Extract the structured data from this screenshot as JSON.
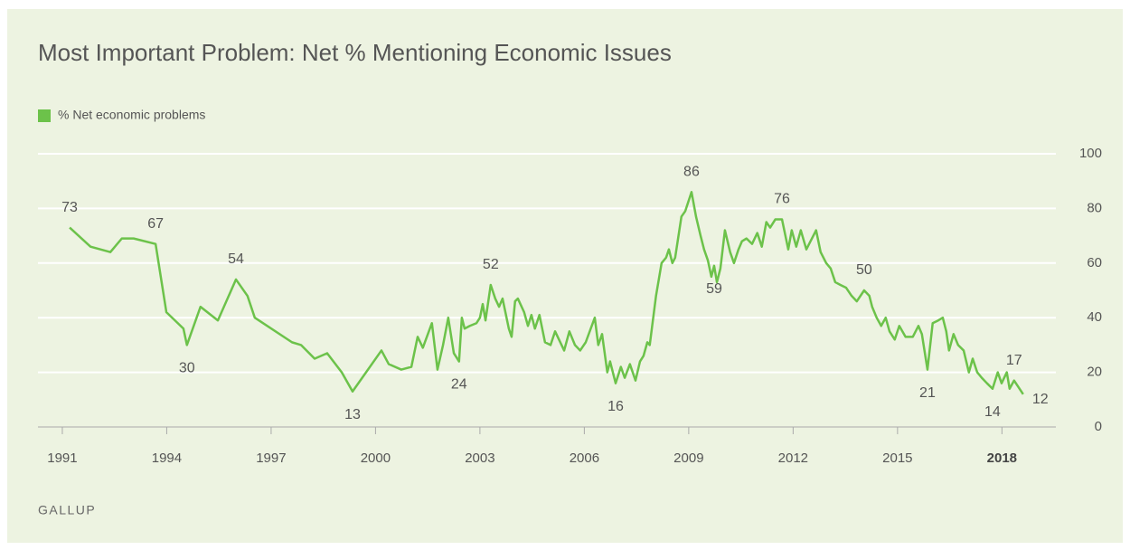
{
  "chart_data": {
    "type": "line",
    "title": "Most Important Problem: Net % Mentioning Economic Issues",
    "source": "GALLUP",
    "x": [
      1991.21,
      1991.81,
      1992.38,
      1992.71,
      1993.05,
      1993.68,
      1993.99,
      1994.48,
      1994.58,
      1994.97,
      1995.47,
      1995.99,
      1996.32,
      1996.53,
      1997.6,
      1997.86,
      1998.25,
      1998.61,
      1999.03,
      1999.34,
      2000.17,
      2000.38,
      2000.74,
      2001.03,
      2001.21,
      2001.36,
      2001.62,
      2001.78,
      2001.94,
      2002.09,
      2002.25,
      2002.4,
      2002.48,
      2002.56,
      2002.71,
      2002.9,
      2003.0,
      2003.08,
      2003.16,
      2003.31,
      2003.44,
      2003.55,
      2003.65,
      2003.83,
      2003.91,
      2004.01,
      2004.09,
      2004.27,
      2004.38,
      2004.48,
      2004.58,
      2004.71,
      2004.87,
      2005.03,
      2005.16,
      2005.42,
      2005.57,
      2005.73,
      2005.88,
      2006.04,
      2006.3,
      2006.4,
      2006.51,
      2006.66,
      2006.74,
      2006.9,
      2007.05,
      2007.16,
      2007.31,
      2007.47,
      2007.6,
      2007.7,
      2007.81,
      2007.88,
      2008.06,
      2008.22,
      2008.35,
      2008.43,
      2008.53,
      2008.61,
      2008.79,
      2008.9,
      2009.08,
      2009.21,
      2009.34,
      2009.44,
      2009.55,
      2009.65,
      2009.73,
      2009.81,
      2009.91,
      2010.04,
      2010.19,
      2010.3,
      2010.43,
      2010.53,
      2010.66,
      2010.82,
      2010.97,
      2011.1,
      2011.23,
      2011.34,
      2011.49,
      2011.68,
      2011.86,
      2011.96,
      2012.09,
      2012.22,
      2012.38,
      2012.66,
      2012.79,
      2012.95,
      2013.08,
      2013.21,
      2013.36,
      2013.52,
      2013.68,
      2013.83,
      2014.04,
      2014.19,
      2014.27,
      2014.4,
      2014.53,
      2014.66,
      2014.77,
      2014.92,
      2015.05,
      2015.23,
      2015.44,
      2015.6,
      2015.7,
      2015.86,
      2016.01,
      2016.17,
      2016.3,
      2016.4,
      2016.48,
      2016.61,
      2016.74,
      2016.9,
      2017.05,
      2017.16,
      2017.29,
      2017.42,
      2017.57,
      2017.73,
      2017.88,
      2017.99,
      2018.14,
      2018.22,
      2018.35,
      2018.61
    ],
    "series": [
      {
        "name": "% Net economic problems",
        "color": "#6cc24a",
        "values": [
          73,
          66,
          64,
          69,
          69,
          67,
          42,
          36,
          30,
          44,
          39,
          54,
          48,
          40,
          31,
          30,
          25,
          27,
          20,
          13,
          28,
          23,
          21,
          22,
          33,
          29,
          38,
          21,
          30,
          40,
          27,
          24,
          40,
          36,
          37,
          38,
          40,
          45,
          39,
          52,
          47,
          44,
          47,
          36,
          33,
          46,
          47,
          42,
          37,
          41,
          36,
          41,
          31,
          30,
          35,
          28,
          35,
          30,
          28,
          31,
          40,
          30,
          34,
          20,
          24,
          16,
          22,
          18,
          23,
          17,
          24,
          26,
          31,
          30,
          48,
          60,
          62,
          65,
          60,
          62,
          77,
          79,
          86,
          77,
          70,
          65,
          61,
          55,
          59,
          53,
          58,
          72,
          64,
          60,
          65,
          68,
          69,
          67,
          71,
          66,
          75,
          73,
          76,
          76,
          65,
          72,
          66,
          72,
          65,
          72,
          64,
          60,
          58,
          53,
          52,
          51,
          48,
          46,
          50,
          48,
          44,
          40,
          37,
          40,
          35,
          32,
          37,
          33,
          33,
          37,
          34,
          21,
          38,
          39,
          40,
          35,
          28,
          34,
          30,
          28,
          20,
          25,
          20,
          18,
          16,
          14,
          20,
          16,
          20,
          14,
          17,
          12
        ]
      }
    ],
    "annotations": [
      {
        "x": 1991.21,
        "y": 73
      },
      {
        "x": 1993.68,
        "y": 67
      },
      {
        "x": 1994.58,
        "y": 30
      },
      {
        "x": 1995.99,
        "y": 54
      },
      {
        "x": 1999.34,
        "y": 13
      },
      {
        "x": 2002.4,
        "y": 24
      },
      {
        "x": 2003.31,
        "y": 52
      },
      {
        "x": 2006.9,
        "y": 16
      },
      {
        "x": 2009.08,
        "y": 86
      },
      {
        "x": 2009.73,
        "y": 59
      },
      {
        "x": 2011.68,
        "y": 76
      },
      {
        "x": 2014.04,
        "y": 50
      },
      {
        "x": 2015.86,
        "y": 21
      },
      {
        "x": 2017.73,
        "y": 14
      },
      {
        "x": 2018.35,
        "y": 17
      },
      {
        "x": 2018.61,
        "y": 12
      }
    ],
    "xlim": [
      1990.3,
      2019.55
    ],
    "xticks": [
      1991,
      1994,
      1997,
      2000,
      2003,
      2006,
      2009,
      2012,
      2015,
      2018
    ],
    "bold_last_xtick": true,
    "ylim": [
      0,
      100
    ],
    "yticks": [
      0,
      20,
      40,
      60,
      80,
      100
    ],
    "y_axis_side": "right",
    "grid": true,
    "legend": "top-left"
  }
}
